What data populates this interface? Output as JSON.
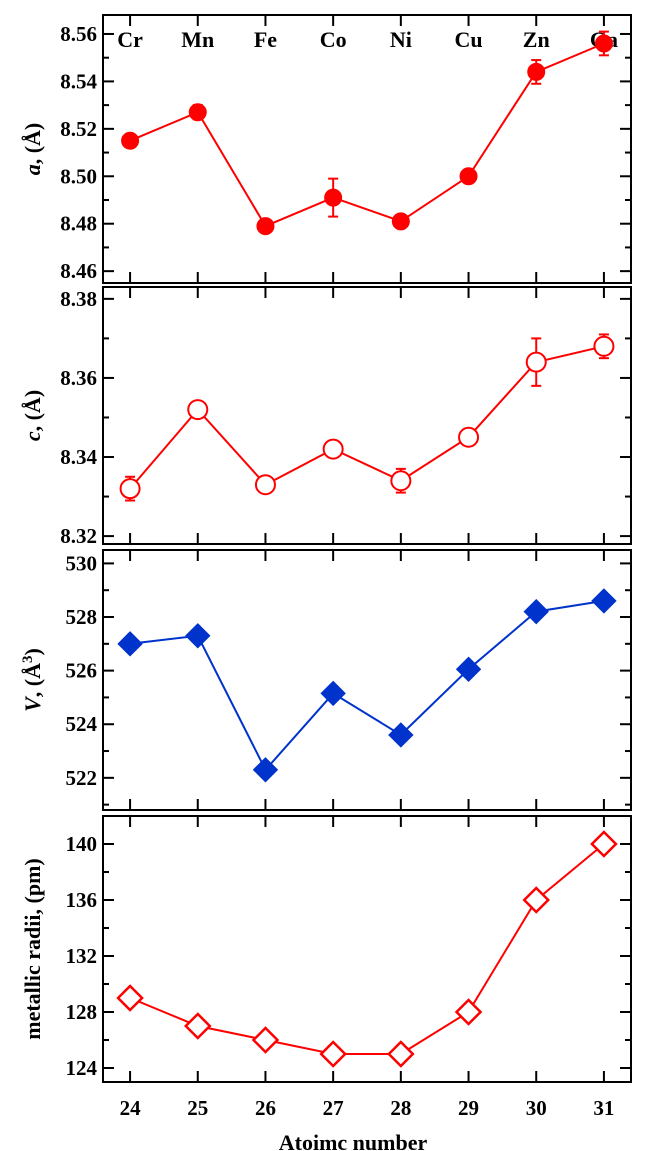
{
  "chart_data": [
    {
      "type": "line",
      "ylabel": "a, (Å)",
      "ylim": [
        8.455,
        8.568
      ],
      "yticks": [
        8.46,
        8.48,
        8.5,
        8.52,
        8.54,
        8.56
      ],
      "ytick_labels": [
        "8.46",
        "8.48",
        "8.50",
        "8.52",
        "8.54",
        "8.56"
      ],
      "xlim": [
        23.6,
        31.4
      ],
      "x": [
        24,
        25,
        26,
        27,
        28,
        29,
        30,
        31
      ],
      "element_labels": [
        "Cr",
        "Mn",
        "Fe",
        "Co",
        "Ni",
        "Cu",
        "Zn",
        "Ga"
      ],
      "series": [
        {
          "values": [
            8.515,
            8.527,
            8.479,
            8.491,
            8.481,
            8.5,
            8.544,
            8.556
          ],
          "errors": [
            0.002,
            0.003,
            0.001,
            0.008,
            0.002,
            0.002,
            0.005,
            0.005
          ],
          "color": "#ff0000",
          "marker": "filled-circle"
        }
      ]
    },
    {
      "type": "line",
      "ylabel": "c, (Å)",
      "ylim": [
        8.318,
        8.383
      ],
      "yticks": [
        8.32,
        8.34,
        8.36,
        8.38
      ],
      "ytick_labels": [
        "8.32",
        "8.34",
        "8.36",
        "8.38"
      ],
      "xlim": [
        23.6,
        31.4
      ],
      "x": [
        24,
        25,
        26,
        27,
        28,
        29,
        30,
        31
      ],
      "series": [
        {
          "values": [
            8.332,
            8.352,
            8.333,
            8.342,
            8.334,
            8.345,
            8.364,
            8.368
          ],
          "errors": [
            0.003,
            0.001,
            0.001,
            0.001,
            0.003,
            0.001,
            0.006,
            0.003
          ],
          "color": "#ff0000",
          "marker": "open-circle"
        }
      ]
    },
    {
      "type": "line",
      "ylabel": "V, (Å³)",
      "ylim": [
        520.8,
        530.5
      ],
      "yticks": [
        522,
        524,
        526,
        528,
        530
      ],
      "ytick_labels": [
        "522",
        "524",
        "526",
        "528",
        "530"
      ],
      "xlim": [
        23.6,
        31.4
      ],
      "x": [
        24,
        25,
        26,
        27,
        28,
        29,
        30,
        31
      ],
      "series": [
        {
          "values": [
            527.0,
            527.3,
            522.3,
            525.15,
            523.6,
            526.05,
            528.2,
            528.6
          ],
          "color": "#0033cc",
          "marker": "filled-diamond"
        }
      ]
    },
    {
      "type": "line",
      "ylabel": "metallic radii, (pm)",
      "xlabel": "Atoimc number",
      "ylim": [
        123.0,
        142.0
      ],
      "yticks": [
        124,
        128,
        132,
        136,
        140
      ],
      "ytick_labels": [
        "124",
        "128",
        "132",
        "136",
        "140"
      ],
      "xlim": [
        23.6,
        31.4
      ],
      "x": [
        24,
        25,
        26,
        27,
        28,
        29,
        30,
        31
      ],
      "xtick_labels": [
        "24",
        "25",
        "26",
        "27",
        "28",
        "29",
        "30",
        "31"
      ],
      "series": [
        {
          "values": [
            129,
            127,
            126,
            125,
            125,
            128,
            136,
            140
          ],
          "color": "#ff0000",
          "marker": "open-diamond"
        }
      ]
    }
  ]
}
